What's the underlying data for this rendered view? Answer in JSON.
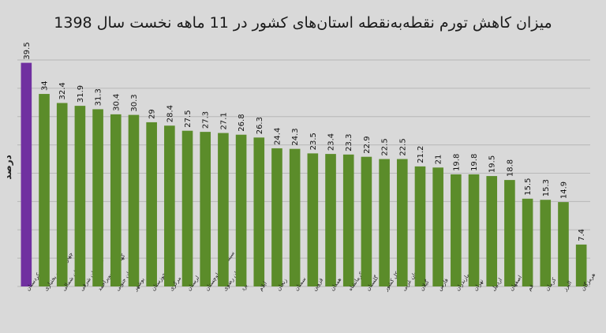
{
  "chart_data": {
    "type": "bar",
    "title": "میزان کاهش تورم نقطه‌به‌نقطه استان‌های کشور در 11 ماهه نخست سال 1398",
    "ylabel": "درصد",
    "xlabel": "",
    "ylim": [
      0,
      40
    ],
    "grid": true,
    "categories": [
      "کردستان",
      "چهارمحال و بختیاری",
      "خراسان شمالی",
      "آذربایجان شرقی",
      "کهگیلویه وبویراحمد",
      "خراسان جنوبی",
      "بوشهر",
      "خوزستان",
      "مرکزی",
      "لرستان",
      "سیستان و بلوچستان",
      "خراسان رضوی",
      "یزد",
      "ایلام",
      "زنجان",
      "سمنان",
      "قزوین",
      "همدان",
      "کرمانشاه",
      "گلستان",
      "کل کشور",
      "آذربایجان غربی",
      "گیلان",
      "فارس",
      "مازندران",
      "تهران",
      "اردبیل",
      "اصفهان",
      "قم",
      "کرمان",
      "البرز",
      "هرمزگان"
    ],
    "values": [
      39.5,
      34,
      32.4,
      31.9,
      31.3,
      30.4,
      30.3,
      29,
      28.4,
      27.5,
      27.3,
      27.1,
      26.8,
      26.3,
      24.4,
      24.3,
      23.5,
      23.4,
      23.3,
      22.9,
      22.5,
      22.5,
      21.2,
      21,
      19.8,
      19.8,
      19.5,
      18.8,
      15.5,
      15.3,
      14.9,
      7.4
    ],
    "colors": {
      "highlight": "#7030a0",
      "default": "#5b8c2a",
      "grid": "#b8b8b8"
    },
    "highlight_index": 0
  }
}
